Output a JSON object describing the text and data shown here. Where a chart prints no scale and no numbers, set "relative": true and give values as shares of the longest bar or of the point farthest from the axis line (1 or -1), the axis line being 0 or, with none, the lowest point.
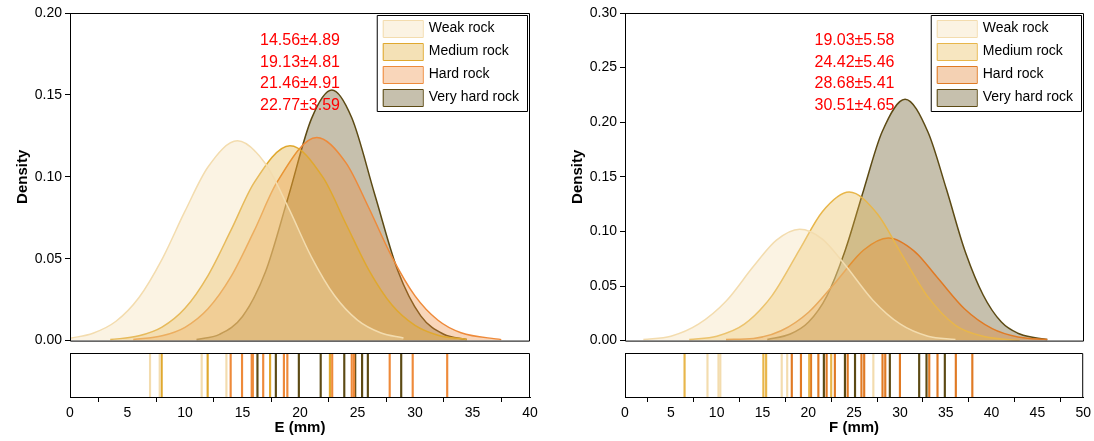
{
  "chart_data": [
    {
      "type": "area",
      "ylabel": "Density",
      "xlim": [
        0,
        40
      ],
      "ylim": [
        0,
        0.2
      ],
      "yticks": [
        {
          "value": 0,
          "label": "0.00"
        },
        {
          "value": 0.05,
          "label": "0.05"
        },
        {
          "value": 0.1,
          "label": "0.10"
        },
        {
          "value": 0.15,
          "label": "0.15"
        },
        {
          "value": 0.2,
          "label": "0.20"
        }
      ],
      "tick_labels": "y",
      "legend": "top right",
      "annotations": [
        "14.56±4.89",
        "19.13±4.81",
        "21.46±4.91",
        "22.77±3.59"
      ],
      "series": [
        {
          "name": "Weak rock",
          "color": "#f3dcae",
          "x": [
            0,
            2,
            4,
            6,
            8,
            10,
            12,
            14.56,
            17,
            19,
            21,
            23,
            25,
            27,
            29
          ],
          "values": [
            0.0014,
            0.0045,
            0.0118,
            0.0263,
            0.0496,
            0.079,
            0.106,
            0.122,
            0.108,
            0.081,
            0.051,
            0.0275,
            0.0125,
            0.0048,
            0.0016
          ]
        },
        {
          "name": "Medium rock",
          "color": "#e0a82e",
          "x": [
            3.5,
            6,
            8,
            10,
            12,
            14,
            16,
            19.13,
            22,
            24,
            26,
            28,
            30,
            32,
            34.5
          ],
          "values": [
            0.0006,
            0.0029,
            0.0082,
            0.0197,
            0.0397,
            0.0674,
            0.0963,
            0.119,
            0.0996,
            0.0712,
            0.0429,
            0.0217,
            0.0093,
            0.0033,
            0.0007
          ]
        },
        {
          "name": "Hard rock",
          "color": "#ee8a3a",
          "x": [
            5.5,
            8,
            10,
            12,
            14,
            16,
            18,
            21.46,
            24,
            26,
            28,
            30,
            32,
            34,
            37.5
          ],
          "values": [
            0.0006,
            0.0029,
            0.0081,
            0.0194,
            0.039,
            0.0668,
            0.0967,
            0.124,
            0.1085,
            0.0808,
            0.051,
            0.0273,
            0.0124,
            0.0048,
            0.0006
          ]
        },
        {
          "name": "Very hard rock",
          "color": "#5c4a14",
          "x": [
            11,
            13,
            15,
            17,
            19,
            21,
            22.77,
            24.5,
            26.5,
            28.5,
            30.5,
            32.5,
            34.5
          ],
          "values": [
            0.0007,
            0.0038,
            0.0147,
            0.042,
            0.0882,
            0.1355,
            0.153,
            0.136,
            0.0892,
            0.0428,
            0.0151,
            0.0039,
            0.0007
          ]
        }
      ]
    },
    {
      "type": "bar",
      "relative": true,
      "xlabel": "E (mm)",
      "xlim": [
        0,
        40
      ],
      "xticks": [
        0,
        5,
        10,
        15,
        20,
        25,
        30,
        35,
        40
      ],
      "tick_labels": "x",
      "series": [
        {
          "color": "#f3dcae",
          "x": [
            6.96,
            7.8,
            11.45,
            13.6
          ],
          "values": [
            1,
            1,
            1,
            1
          ]
        },
        {
          "color": "#e0a82e",
          "x": [
            7.97,
            11.97,
            17.4,
            22.6
          ],
          "values": [
            1,
            1,
            1,
            1
          ]
        },
        {
          "color": "#ee8a3a",
          "x": [
            13.97,
            14.96,
            15.8,
            15.9,
            16.8,
            18.6,
            18.9,
            22.8,
            24.5,
            24.7,
            27.8,
            29.8,
            32.8
          ],
          "values": [
            1,
            1,
            1,
            1,
            1,
            1,
            1,
            1,
            1,
            1,
            1,
            1,
            1
          ]
        },
        {
          "color": "#5c4a14",
          "x": [
            16.3,
            17.9,
            19.9,
            21.8,
            23.85,
            24.8,
            25.4,
            25.9,
            28.8
          ],
          "values": [
            1,
            1,
            1,
            1,
            1,
            1,
            1,
            1,
            1
          ]
        }
      ]
    },
    {
      "type": "area",
      "ylabel": "Density",
      "xlim": [
        0,
        50
      ],
      "ylim": [
        0,
        0.3
      ],
      "yticks": [
        {
          "value": 0,
          "label": "0.00"
        },
        {
          "value": 0.05,
          "label": "0.05"
        },
        {
          "value": 0.1,
          "label": "0.10"
        },
        {
          "value": 0.15,
          "label": "0.15"
        },
        {
          "value": 0.2,
          "label": "0.20"
        },
        {
          "value": 0.25,
          "label": "0.25"
        },
        {
          "value": 0.3,
          "label": "0.30"
        }
      ],
      "tick_labels": "y",
      "legend": "top right",
      "annotations": [
        "19.03±5.58",
        "24.42±5.46",
        "28.68±5.41",
        "30.51±4.65"
      ],
      "series": [
        {
          "name": "Weak rock",
          "color": "#f3dcae",
          "x": [
            2,
            5,
            8,
            11,
            14,
            16.5,
            19.03,
            21.5,
            24,
            27,
            30,
            33,
            36
          ],
          "values": [
            0.001,
            0.004,
            0.015,
            0.036,
            0.068,
            0.092,
            0.102,
            0.093,
            0.069,
            0.037,
            0.015,
            0.004,
            0.001
          ]
        },
        {
          "name": "Medium rock",
          "color": "#e8b64a",
          "x": [
            7,
            10,
            13,
            16,
            19,
            21.5,
            24.42,
            27.5,
            30,
            33,
            36,
            39,
            43
          ],
          "values": [
            0.001,
            0.004,
            0.015,
            0.041,
            0.083,
            0.118,
            0.136,
            0.116,
            0.081,
            0.04,
            0.014,
            0.004,
            0
          ]
        },
        {
          "name": "Hard rock",
          "color": "#e07a24",
          "x": [
            11,
            14,
            17,
            20,
            23,
            26,
            28.68,
            31.5,
            34,
            37,
            40,
            43,
            46
          ],
          "values": [
            0.001,
            0.002,
            0.009,
            0.026,
            0.054,
            0.083,
            0.094,
            0.082,
            0.058,
            0.029,
            0.011,
            0.003,
            0.001
          ]
        },
        {
          "name": "Very hard rock",
          "color": "#5c4a14",
          "x": [
            15.5,
            18,
            20,
            22,
            24,
            26,
            28,
            30.51,
            33,
            35,
            37,
            39,
            41,
            43,
            46
          ],
          "values": [
            0.001,
            0.006,
            0.017,
            0.041,
            0.083,
            0.138,
            0.191,
            0.221,
            0.191,
            0.139,
            0.083,
            0.042,
            0.017,
            0.006,
            0.001
          ]
        }
      ]
    },
    {
      "type": "bar",
      "relative": true,
      "xlabel": "F (mm)",
      "xlim": [
        0,
        50
      ],
      "xticks": [
        0,
        5,
        10,
        15,
        20,
        25,
        30,
        35,
        40,
        45,
        50
      ],
      "tick_labels": "x",
      "series": [
        {
          "color": "#f3dcae",
          "x": [
            9.0,
            10.2,
            10.4,
            17.1,
            17.7,
            27.1
          ],
          "values": [
            1,
            1,
            1,
            1,
            1,
            1
          ]
        },
        {
          "color": "#e8b64a",
          "x": [
            6.5,
            15.1,
            15.4,
            20.1,
            22.5
          ],
          "values": [
            1,
            1,
            1,
            1,
            1
          ]
        },
        {
          "color": "#e07a24",
          "x": [
            18.2,
            19.2,
            20.3,
            21.1,
            22.0,
            22.9,
            24.3,
            25.8,
            26.1,
            28.1,
            28.4,
            30.0,
            33.2,
            34.1,
            36.1,
            37.9
          ],
          "values": [
            1,
            1,
            1,
            1,
            1,
            1,
            1,
            1,
            1,
            1,
            1,
            1,
            1,
            1,
            1,
            1
          ]
        },
        {
          "color": "#5c4a14",
          "x": [
            21.7,
            24.0,
            25.1,
            28.9,
            32.1,
            32.9,
            34.9
          ],
          "values": [
            1,
            1,
            1,
            1,
            1,
            1,
            1
          ]
        }
      ]
    }
  ]
}
